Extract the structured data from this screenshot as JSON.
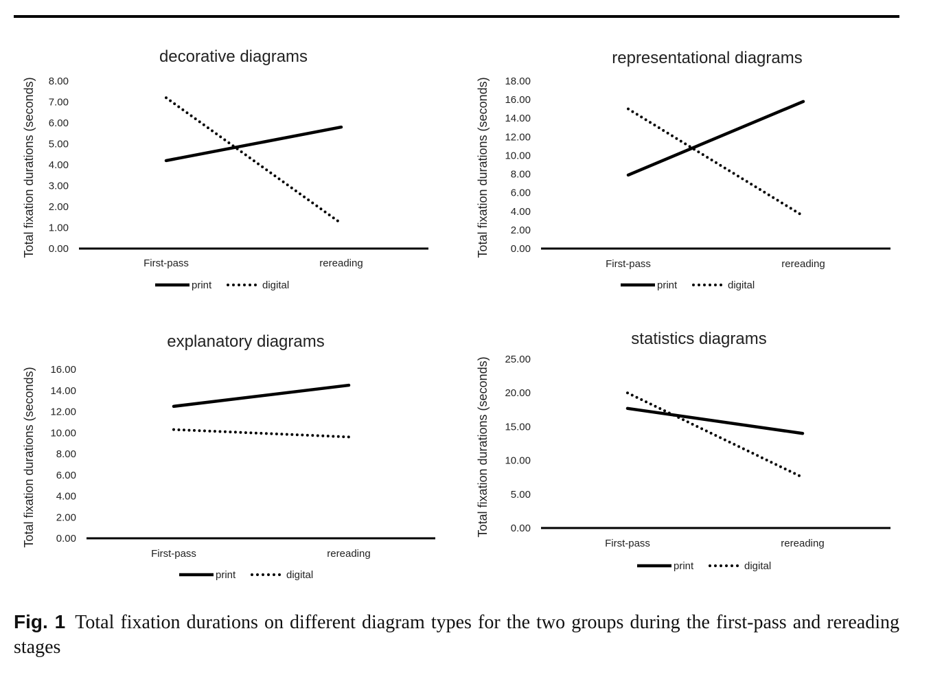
{
  "figure": {
    "label": "Fig. 1",
    "caption": "Total fixation durations on different diagram types for the two groups during the first-pass and rereading stages"
  },
  "colors": {
    "line": "#000000",
    "text": "#222222"
  },
  "chart_data": [
    {
      "type": "line",
      "title": "decorative diagrams",
      "xlabel": "",
      "ylabel": "Total fixation durations (seconds)",
      "categories": [
        "First-pass",
        "rereading"
      ],
      "yticks": [
        "0.00",
        "1.00",
        "2.00",
        "3.00",
        "4.00",
        "5.00",
        "6.00",
        "7.00",
        "8.00"
      ],
      "ylim": [
        0,
        8
      ],
      "series": [
        {
          "name": "print",
          "style": "solid",
          "values": [
            4.2,
            5.8
          ]
        },
        {
          "name": "digital",
          "style": "dotted",
          "values": [
            7.2,
            1.2
          ]
        }
      ],
      "legend": "bottom-center",
      "grid": false
    },
    {
      "type": "line",
      "title": "representational diagrams",
      "xlabel": "",
      "ylabel": "Total fixation durations (seconds)",
      "categories": [
        "First-pass",
        "rereading"
      ],
      "yticks": [
        "0.00",
        "2.00",
        "4.00",
        "6.00",
        "8.00",
        "10.00",
        "12.00",
        "14.00",
        "16.00",
        "18.00"
      ],
      "ylim": [
        0,
        18
      ],
      "series": [
        {
          "name": "print",
          "style": "solid",
          "values": [
            7.9,
            15.8
          ]
        },
        {
          "name": "digital",
          "style": "dotted",
          "values": [
            15.0,
            3.5
          ]
        }
      ],
      "legend": "bottom-center",
      "grid": false
    },
    {
      "type": "line",
      "title": "explanatory diagrams",
      "xlabel": "",
      "ylabel": "Total fixation durations (seconds)",
      "categories": [
        "First-pass",
        "rereading"
      ],
      "yticks": [
        "0.00",
        "2.00",
        "4.00",
        "6.00",
        "8.00",
        "10.00",
        "12.00",
        "14.00",
        "16.00"
      ],
      "ylim": [
        0,
        16
      ],
      "series": [
        {
          "name": "print",
          "style": "solid",
          "values": [
            12.5,
            14.5
          ]
        },
        {
          "name": "digital",
          "style": "dotted",
          "values": [
            10.3,
            9.6
          ]
        }
      ],
      "legend": "bottom-center",
      "grid": false
    },
    {
      "type": "line",
      "title": "statistics diagrams",
      "xlabel": "",
      "ylabel": "Total fixation durations (seconds)",
      "categories": [
        "First-pass",
        "rereading"
      ],
      "yticks": [
        "0.00",
        "5.00",
        "10.00",
        "15.00",
        "20.00",
        "25.00"
      ],
      "ylim": [
        0,
        25
      ],
      "series": [
        {
          "name": "print",
          "style": "solid",
          "values": [
            17.7,
            14.0
          ]
        },
        {
          "name": "digital",
          "style": "dotted",
          "values": [
            20.0,
            7.5
          ]
        }
      ],
      "legend": "bottom-center",
      "grid": false
    }
  ]
}
